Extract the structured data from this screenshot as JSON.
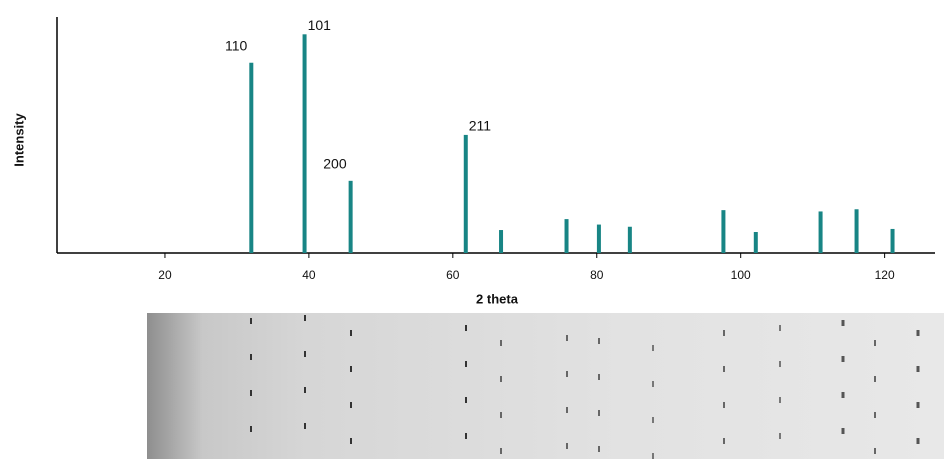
{
  "chart_data": {
    "type": "stick",
    "x_label": "2 theta",
    "y_label": "Intensity",
    "x": [
      32,
      39.4,
      45.8,
      61.8,
      66.7,
      75.8,
      80.3,
      84.6,
      97.6,
      102.1,
      111.1,
      116.1,
      121.1
    ],
    "values": [
      87,
      100,
      33,
      54,
      10.5,
      15.5,
      13,
      12,
      19.6,
      9.6,
      19,
      20,
      11
    ],
    "labels": [
      "110",
      "101",
      "200",
      "211",
      null,
      null,
      null,
      null,
      null,
      null,
      null,
      null,
      null
    ],
    "color": "#188585",
    "xlim": [
      5,
      127
    ],
    "xticks": [
      20,
      40,
      60,
      80,
      100,
      120
    ],
    "ylim": [
      0,
      107
    ]
  }
}
